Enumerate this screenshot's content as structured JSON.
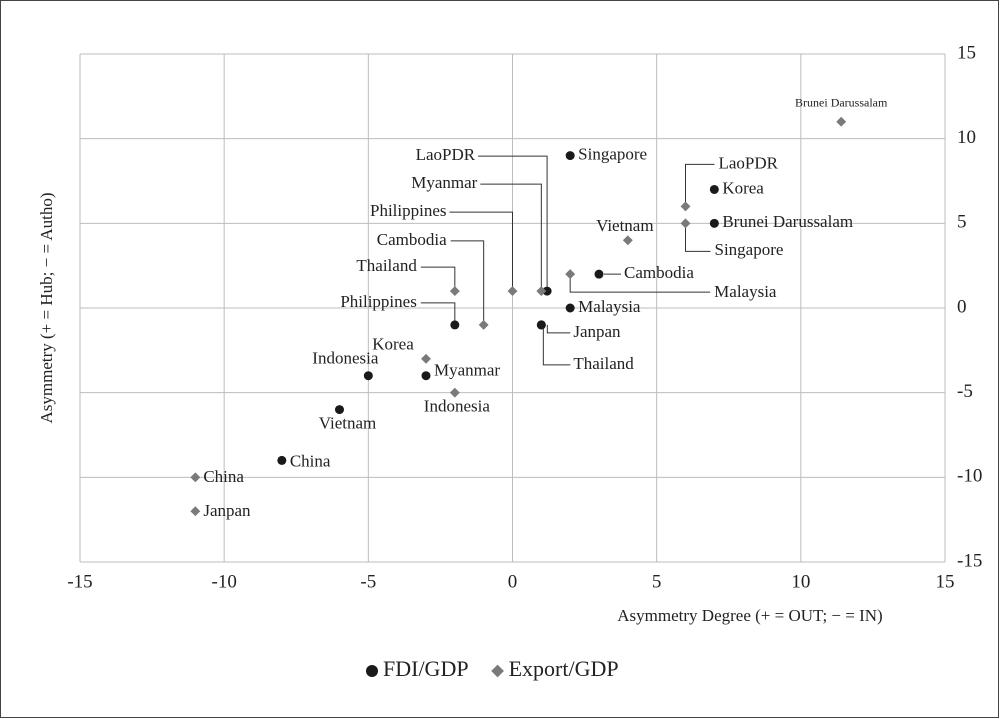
{
  "chart_data": {
    "type": "scatter",
    "xlabel": "Asymmetry Degree (+ = OUT; − = IN)",
    "ylabel": "Asymmetry (+ = Hub; − = Autho)",
    "xlim": [
      -15,
      15
    ],
    "ylim": [
      -15,
      15
    ],
    "xticks": [
      -15,
      -10,
      -5,
      0,
      5,
      10,
      15
    ],
    "yticks": [
      -15,
      -10,
      -5,
      0,
      5,
      10,
      15
    ],
    "grid": true,
    "legend": "bottom",
    "series": [
      {
        "name": "FDI/GDP",
        "color": "#1a1a1a",
        "marker": "circle",
        "labels": [
          "Singapore",
          "Korea",
          "Brunei Darussalam",
          "Cambodia",
          "LaoPDR",
          "Malaysia",
          "Janpan",
          "Thailand",
          "Philippines",
          "Indonesia",
          "Myanmar",
          "Vietnam",
          "China"
        ],
        "x": [
          2,
          7,
          7,
          3,
          1.2,
          2,
          1,
          1,
          -2,
          -5,
          -3,
          -6,
          -8
        ],
        "values": [
          9,
          7,
          5,
          2,
          1,
          0,
          -1,
          -1,
          -1,
          -4,
          -4,
          -6,
          -9
        ]
      },
      {
        "name": "Export/GDP",
        "color": "#7a7a7a",
        "marker": "diamond",
        "labels": [
          "Brunei Darussalam",
          "LaoPDR",
          "Singapore",
          "Vietnam",
          "Malaysia",
          "Myanmar",
          "Philippines",
          "Cambodia",
          "Thailand",
          "Korea",
          "Indonesia",
          "China",
          "Janpan"
        ],
        "x": [
          11.4,
          6,
          6,
          4,
          2,
          1,
          0,
          -1,
          -2,
          -3,
          -2,
          -11,
          -11
        ],
        "values": [
          11,
          6,
          5,
          4,
          2,
          1,
          1,
          -1,
          1,
          -3,
          -5,
          -10,
          -12
        ]
      }
    ]
  }
}
